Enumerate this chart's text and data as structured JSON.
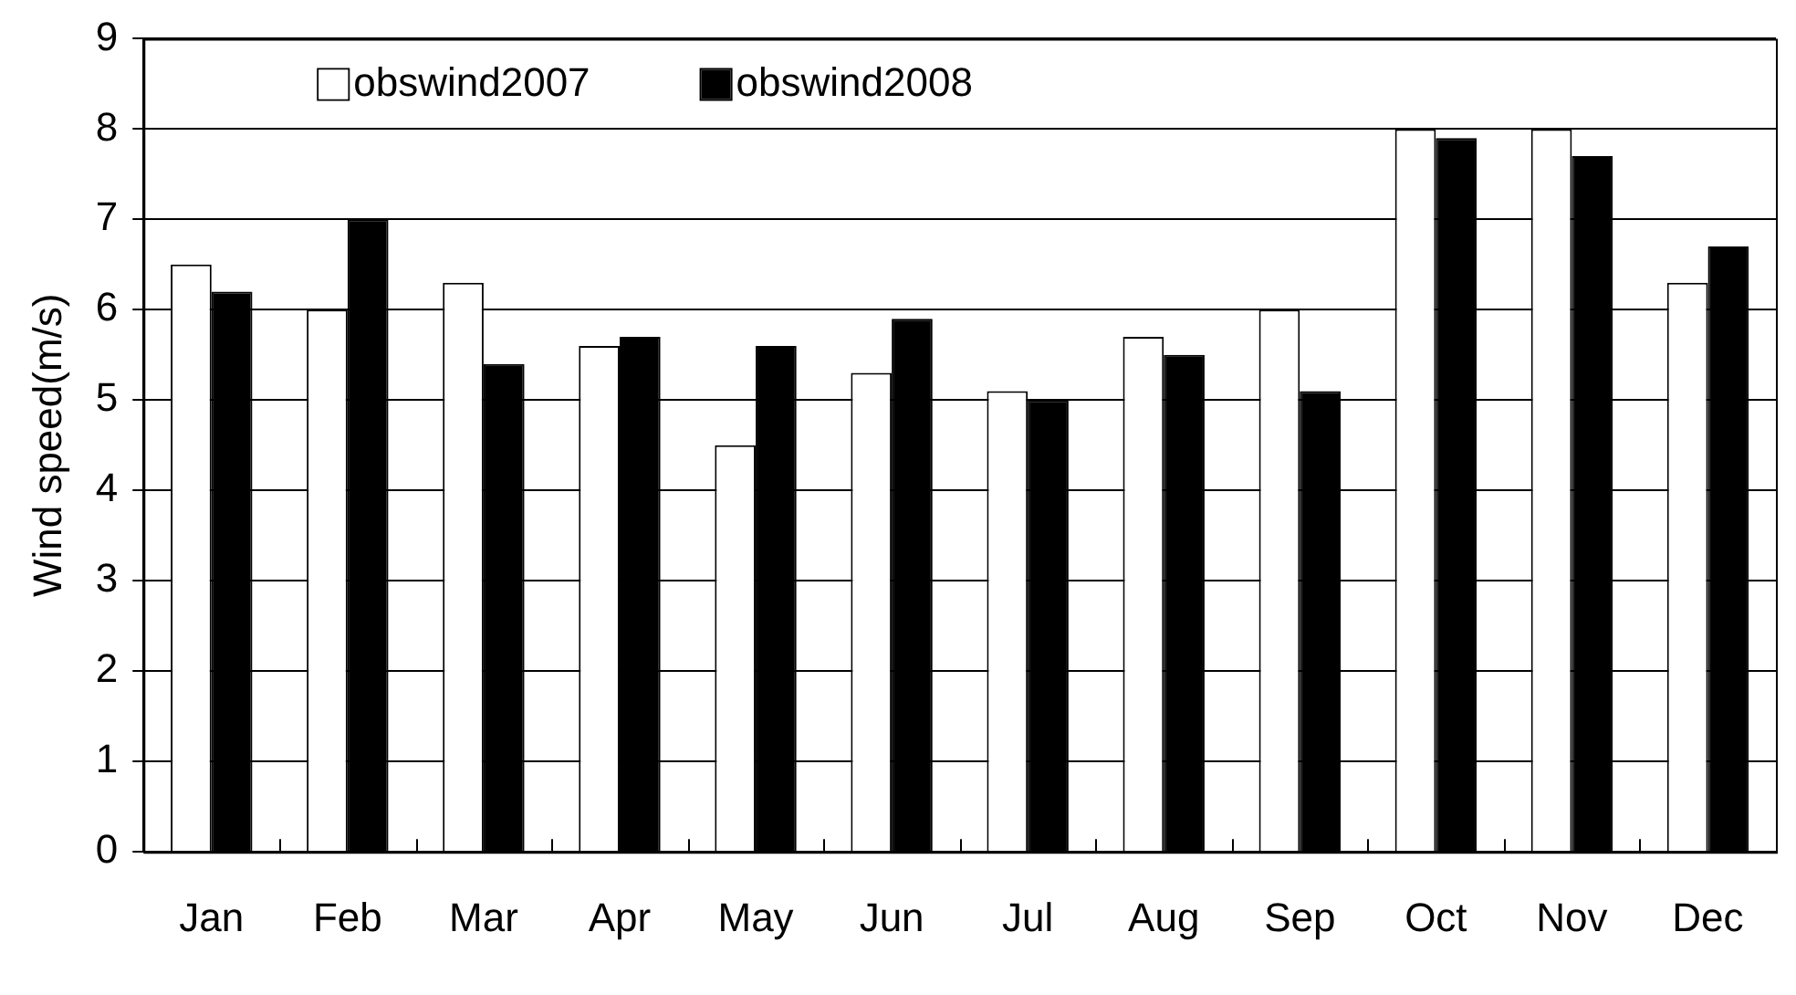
{
  "chart_data": {
    "type": "bar",
    "ylabel": "Wind speed(m/s)",
    "categories": [
      "Jan",
      "Feb",
      "Mar",
      "Apr",
      "May",
      "Jun",
      "Jul",
      "Aug",
      "Sep",
      "Oct",
      "Nov",
      "Dec"
    ],
    "series": [
      {
        "name": "obswind2007",
        "color": "#ffffff",
        "values": [
          6.5,
          6.0,
          6.3,
          5.6,
          4.5,
          5.3,
          5.1,
          5.7,
          6.0,
          8.0,
          8.0,
          6.3
        ]
      },
      {
        "name": "obswind2008",
        "color": "#000000",
        "values": [
          6.2,
          7.0,
          5.4,
          5.7,
          5.6,
          5.9,
          5.0,
          5.5,
          5.1,
          7.9,
          7.7,
          6.7
        ]
      }
    ],
    "ylim": [
      0,
      9
    ],
    "yticks": [
      0,
      1,
      2,
      3,
      4,
      5,
      6,
      7,
      8,
      9
    ],
    "grid": "y",
    "legend": "top left"
  }
}
